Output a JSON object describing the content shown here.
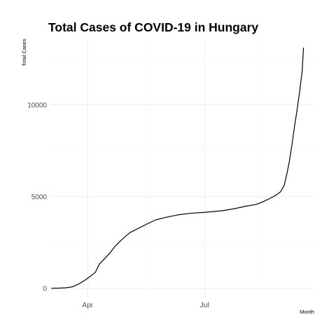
{
  "chart_data": {
    "type": "line",
    "title": "Total Cases of COVID-19 in Hungary",
    "xlabel": "Month",
    "ylabel": "Total Cases",
    "x_ticks": [
      "Apr",
      "Jul"
    ],
    "y_ticks": [
      "0",
      "5000",
      "10000"
    ],
    "ylim": [
      -500,
      13500
    ],
    "xlim": [
      "2020-03-03",
      "2020-09-25"
    ],
    "grid": true,
    "series": [
      {
        "color": "#000000",
        "points": [
          {
            "x": "2020-03-04",
            "y": 0
          },
          {
            "x": "2020-03-10",
            "y": 10
          },
          {
            "x": "2020-03-15",
            "y": 30
          },
          {
            "x": "2020-03-20",
            "y": 80
          },
          {
            "x": "2020-03-25",
            "y": 230
          },
          {
            "x": "2020-03-30",
            "y": 450
          },
          {
            "x": "2020-04-04",
            "y": 700
          },
          {
            "x": "2020-04-07",
            "y": 870
          },
          {
            "x": "2020-04-10",
            "y": 1310
          },
          {
            "x": "2020-04-14",
            "y": 1600
          },
          {
            "x": "2020-04-18",
            "y": 1900
          },
          {
            "x": "2020-04-22",
            "y": 2260
          },
          {
            "x": "2020-04-26",
            "y": 2550
          },
          {
            "x": "2020-04-30",
            "y": 2800
          },
          {
            "x": "2020-05-04",
            "y": 3040
          },
          {
            "x": "2020-05-10",
            "y": 3250
          },
          {
            "x": "2020-05-17",
            "y": 3500
          },
          {
            "x": "2020-05-24",
            "y": 3730
          },
          {
            "x": "2020-06-01",
            "y": 3870
          },
          {
            "x": "2020-06-10",
            "y": 4000
          },
          {
            "x": "2020-06-20",
            "y": 4090
          },
          {
            "x": "2020-07-01",
            "y": 4140
          },
          {
            "x": "2020-07-15",
            "y": 4230
          },
          {
            "x": "2020-07-25",
            "y": 4350
          },
          {
            "x": "2020-08-01",
            "y": 4460
          },
          {
            "x": "2020-08-10",
            "y": 4570
          },
          {
            "x": "2020-08-15",
            "y": 4700
          },
          {
            "x": "2020-08-20",
            "y": 4870
          },
          {
            "x": "2020-08-25",
            "y": 5050
          },
          {
            "x": "2020-08-29",
            "y": 5250
          },
          {
            "x": "2020-09-01",
            "y": 5600
          },
          {
            "x": "2020-09-03",
            "y": 6200
          },
          {
            "x": "2020-09-05",
            "y": 6900
          },
          {
            "x": "2020-09-07",
            "y": 7800
          },
          {
            "x": "2020-09-09",
            "y": 8800
          },
          {
            "x": "2020-09-11",
            "y": 9700
          },
          {
            "x": "2020-09-13",
            "y": 10700
          },
          {
            "x": "2020-09-15",
            "y": 11800
          },
          {
            "x": "2020-09-16",
            "y": 13100
          }
        ]
      }
    ]
  }
}
